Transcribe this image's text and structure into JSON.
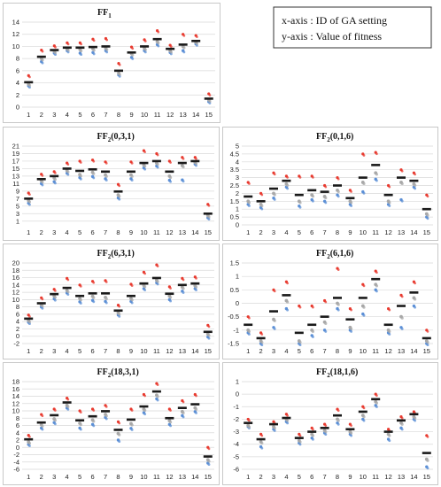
{
  "legend_note": {
    "line1": "x-axis : ID of GA setting",
    "line2": "y-axis : Value of fitness"
  },
  "colors": {
    "mean": "#1a1a1a",
    "max": "#e83a2f",
    "mid": "#a8a8a8",
    "low": "#5b8fd6",
    "olive": "#8a9a4a"
  },
  "chart_data": [
    {
      "type": "scatter",
      "title_main": "FF",
      "title_sub": "1",
      "title_args": "",
      "categories": [
        "1",
        "2",
        "3",
        "4",
        "5",
        "6",
        "7",
        "8",
        "9",
        "10",
        "11",
        "12",
        "13",
        "14",
        "15"
      ],
      "ylim": [
        0,
        14
      ],
      "yticks": [
        0,
        2,
        4,
        6,
        8,
        10,
        12,
        14
      ],
      "grid": true,
      "mean": [
        4.1,
        8.3,
        9.4,
        9.8,
        9.8,
        9.9,
        10.0,
        6.0,
        9.0,
        10.0,
        11.2,
        9.6,
        10.3,
        10.9,
        1.4
      ],
      "max": [
        5.2,
        9.4,
        10.1,
        10.6,
        10.6,
        11.2,
        11.3,
        7.2,
        9.9,
        11.1,
        12.6,
        10.2,
        12.0,
        11.8,
        2.2
      ],
      "mid": [
        3.8,
        8.0,
        9.2,
        9.6,
        9.5,
        9.6,
        9.7,
        5.6,
        8.8,
        9.7,
        10.8,
        9.3,
        10.0,
        10.7,
        1.2
      ],
      "low": [
        3.5,
        7.5,
        8.9,
        9.3,
        8.9,
        9.0,
        9.3,
        5.3,
        8.2,
        9.3,
        10.3,
        9.0,
        9.3,
        10.4,
        0.9
      ]
    },
    {
      "type": "scatter",
      "title_main": "FF",
      "title_sub": "2",
      "title_args": "(0,3,1)",
      "categories": [
        "1",
        "2",
        "3",
        "4",
        "5",
        "6",
        "7",
        "8",
        "9",
        "10",
        "11",
        "12",
        "13",
        "14",
        "15"
      ],
      "ylim": [
        0,
        21
      ],
      "yticks": [
        1,
        3,
        5,
        7,
        9,
        11,
        13,
        15,
        17,
        19,
        21
      ],
      "grid": true,
      "mean": [
        7.0,
        12.2,
        13.0,
        15.0,
        14.4,
        14.8,
        14.2,
        8.9,
        14.2,
        16.5,
        17.0,
        14.2,
        16.5,
        17.0,
        3.0
      ],
      "max": [
        8.5,
        13.5,
        14.2,
        16.5,
        17.0,
        17.3,
        16.8,
        10.8,
        16.8,
        19.8,
        19.0,
        17.0,
        18.0,
        18.0,
        5.5
      ],
      "mid": [
        6.5,
        11.8,
        12.5,
        14.5,
        13.4,
        14.0,
        13.3,
        8.0,
        13.3,
        16.0,
        16.5,
        13.0,
        15.8,
        16.7,
        2.5
      ],
      "low": [
        5.8,
        11.0,
        11.5,
        13.8,
        12.6,
        12.9,
        12.3,
        7.2,
        12.3,
        15.2,
        15.7,
        11.9,
        12.0,
        16.2,
        1.9
      ]
    },
    {
      "type": "scatter",
      "title_main": "FF",
      "title_sub": "2",
      "title_args": "(0,1,6)",
      "categories": [
        "1",
        "2",
        "3",
        "4",
        "5",
        "6",
        "7",
        "8",
        "9",
        "10",
        "11",
        "12",
        "13",
        "14",
        "15"
      ],
      "ylim": [
        0,
        5
      ],
      "yticks": [
        0,
        0.5,
        1,
        1.5,
        2,
        2.5,
        3,
        3.5,
        4,
        4.5,
        5
      ],
      "grid": true,
      "mean": [
        1.8,
        1.5,
        2.3,
        2.8,
        1.9,
        2.2,
        2.1,
        2.5,
        1.7,
        3.0,
        3.8,
        1.9,
        3.0,
        2.8,
        1.0
      ],
      "max": [
        2.7,
        2.0,
        3.3,
        3.1,
        3.1,
        3.1,
        2.5,
        3.0,
        2.2,
        4.5,
        4.6,
        2.5,
        3.5,
        3.3,
        1.9
      ],
      "mid": [
        1.5,
        1.3,
        2.0,
        2.6,
        1.5,
        1.9,
        1.8,
        2.2,
        1.5,
        2.7,
        3.3,
        1.5,
        2.7,
        2.6,
        0.7
      ],
      "low": [
        1.3,
        1.1,
        1.7,
        2.4,
        1.2,
        1.6,
        1.5,
        1.9,
        1.3,
        2.1,
        2.9,
        1.3,
        1.6,
        2.4,
        0.5
      ]
    },
    {
      "type": "scatter",
      "title_main": "FF",
      "title_sub": "2",
      "title_args": "(6,3,1)",
      "categories": [
        "1",
        "2",
        "3",
        "4",
        "5",
        "6",
        "7",
        "8",
        "9",
        "10",
        "11",
        "12",
        "13",
        "14",
        "15"
      ],
      "ylim": [
        -2,
        20
      ],
      "yticks": [
        -2,
        0,
        2,
        4,
        6,
        8,
        10,
        12,
        14,
        16,
        18,
        20
      ],
      "grid": true,
      "mean": [
        4.8,
        9.0,
        11.5,
        13.2,
        11.0,
        11.7,
        11.7,
        7.0,
        11.0,
        14.4,
        15.9,
        11.6,
        14.0,
        14.4,
        1.2
      ],
      "max": [
        5.8,
        10.5,
        12.8,
        15.8,
        14.0,
        15.0,
        15.2,
        8.5,
        14.2,
        17.5,
        19.5,
        13.5,
        15.8,
        16.2,
        3.0
      ],
      "mid": [
        4.3,
        8.6,
        11.0,
        12.5,
        10.3,
        10.9,
        10.6,
        6.4,
        10.3,
        13.9,
        15.3,
        11.0,
        13.4,
        13.8,
        0.6
      ],
      "low": [
        3.8,
        8.0,
        10.2,
        11.8,
        9.4,
        9.8,
        9.5,
        5.8,
        9.5,
        13.0,
        14.6,
        10.0,
        12.3,
        13.0,
        -0.2
      ]
    },
    {
      "type": "scatter",
      "title_main": "FF",
      "title_sub": "2",
      "title_args": "(6,1,6)",
      "categories": [
        "1",
        "2",
        "3",
        "4",
        "5",
        "6",
        "7",
        "8",
        "9",
        "10",
        "11",
        "12",
        "13",
        "14",
        "15"
      ],
      "ylim": [
        -1.5,
        1.5
      ],
      "yticks": [
        -1.5,
        -1,
        -0.5,
        0,
        0.5,
        1,
        1.5
      ],
      "tick_labels": [
        "-1.5",
        "-1",
        "-0.5",
        "0",
        "0.5",
        "1",
        "1.5"
      ],
      "grid": true,
      "mean": [
        -0.8,
        -1.3,
        -0.3,
        0.3,
        -1.1,
        -0.8,
        -0.5,
        0.2,
        -0.6,
        0.2,
        0.9,
        -0.8,
        -0.1,
        0.4,
        -1.3
      ],
      "max": [
        -0.5,
        -1.1,
        0.5,
        0.8,
        -0.1,
        -0.1,
        0.1,
        1.3,
        -0.2,
        0.7,
        1.2,
        -0.2,
        0.3,
        0.8,
        -1.0
      ],
      "mid": [
        -1.0,
        -1.4,
        -0.6,
        0.1,
        -1.4,
        -1.0,
        -0.7,
        0.0,
        -0.9,
        -0.1,
        0.7,
        -1.0,
        -0.5,
        0.2,
        -1.4
      ],
      "low": [
        -1.1,
        -1.5,
        -0.9,
        -0.2,
        -1.5,
        -1.2,
        -1.0,
        -0.2,
        -1.0,
        -0.4,
        0.5,
        -1.1,
        -0.9,
        -0.1,
        -1.5
      ]
    },
    {
      "type": "scatter",
      "title_main": "FF",
      "title_sub": "2",
      "title_args": "(18,3,1)",
      "categories": [
        "1",
        "2",
        "3",
        "4",
        "5",
        "6",
        "7",
        "8",
        "9",
        "10",
        "11",
        "12",
        "13",
        "14",
        "15"
      ],
      "ylim": [
        -6,
        18
      ],
      "yticks": [
        -6,
        -4,
        -2,
        0,
        2,
        4,
        6,
        8,
        10,
        12,
        14,
        16,
        18
      ],
      "grid": true,
      "mean": [
        2.2,
        6.8,
        8.8,
        12.3,
        7.4,
        8.5,
        9.9,
        4.8,
        7.6,
        11.2,
        15.3,
        8.0,
        10.8,
        11.8,
        -2.5
      ],
      "max": [
        3.3,
        9.0,
        10.5,
        13.5,
        10.0,
        10.5,
        11.5,
        7.0,
        10.5,
        14.5,
        17.5,
        10.5,
        12.8,
        14.5,
        0.0
      ],
      "mid": [
        1.5,
        6.2,
        7.8,
        11.5,
        6.6,
        7.5,
        9.0,
        3.8,
        6.5,
        10.5,
        14.3,
        7.3,
        9.8,
        10.8,
        -3.4
      ],
      "low": [
        0.8,
        5.3,
        6.8,
        10.8,
        5.3,
        6.3,
        8.2,
        2.0,
        5.2,
        9.5,
        13.3,
        6.3,
        8.7,
        9.8,
        -4.3
      ]
    },
    {
      "type": "scatter",
      "title_main": "FF",
      "title_sub": "2",
      "title_args": "(18,1,6)",
      "categories": [
        "1",
        "2",
        "3",
        "4",
        "5",
        "6",
        "7",
        "8",
        "9",
        "10",
        "11",
        "12",
        "13",
        "14",
        "15"
      ],
      "ylim": [
        -6,
        1
      ],
      "yticks": [
        -6,
        -5,
        -4,
        -3,
        -2,
        -1,
        0,
        1
      ],
      "grid": true,
      "mean": [
        -2.3,
        -3.6,
        -2.4,
        -1.9,
        -3.5,
        -3.0,
        -2.7,
        -1.7,
        -2.8,
        -1.4,
        -0.4,
        -3.0,
        -2.1,
        -1.6,
        -4.7
      ],
      "max": [
        -2.0,
        -3.2,
        -2.2,
        -1.6,
        -3.2,
        -2.7,
        -2.4,
        -1.2,
        -2.4,
        -1.0,
        0.0,
        -2.8,
        -1.8,
        -1.4,
        -3.3
      ],
      "mid": [
        -2.5,
        -3.8,
        -2.6,
        -2.0,
        -3.7,
        -3.2,
        -2.9,
        -2.0,
        -3.0,
        -1.7,
        -0.6,
        -3.2,
        -2.3,
        -1.8,
        -5.2
      ],
      "low": [
        -2.6,
        -4.2,
        -2.8,
        -2.2,
        -3.9,
        -3.5,
        -3.1,
        -2.3,
        -3.2,
        -2.0,
        -0.9,
        -3.6,
        -2.7,
        -2.0,
        -5.8
      ]
    }
  ]
}
